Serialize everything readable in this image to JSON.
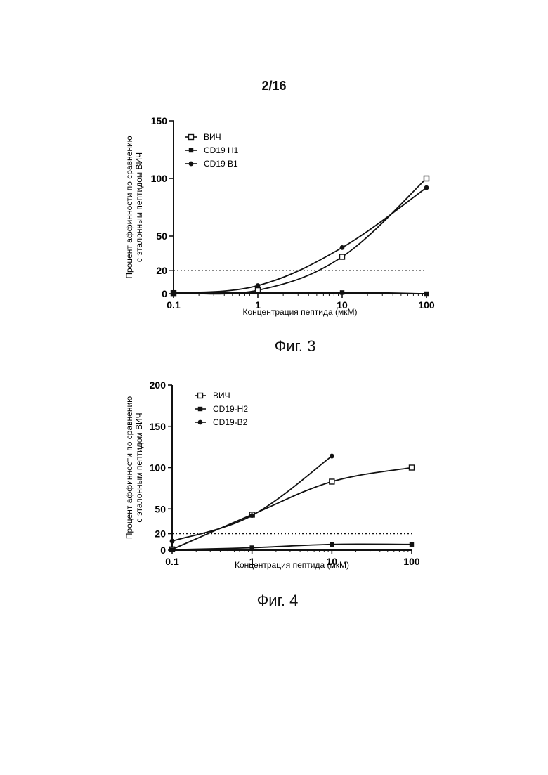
{
  "page": {
    "number": "2/16"
  },
  "figures": [
    {
      "caption": "Фиг. 3"
    },
    {
      "caption": "Фиг. 4"
    }
  ],
  "chart_data": [
    {
      "type": "line",
      "xscale": "log",
      "xlim": [
        0.1,
        100
      ],
      "ylim": [
        0,
        150
      ],
      "xticks": [
        "0.1",
        "1",
        "10",
        "100"
      ],
      "yticks": [
        "0",
        "20",
        "50",
        "100",
        "150"
      ],
      "xlabel": "Концентрация пептида (мкМ)",
      "ylabel": [
        "Процент аффинности по сравнению",
        "с эталонным пептидом ВИЧ"
      ],
      "threshold": 20,
      "legend": "top-left",
      "series": [
        {
          "name": "ВИЧ",
          "marker": "open-square",
          "x": [
            0.1,
            1,
            10,
            100
          ],
          "y": [
            0.5,
            3,
            32,
            100
          ]
        },
        {
          "name": "CD19 H1",
          "marker": "filled-square",
          "x": [
            0.1,
            10,
            100
          ],
          "y": [
            0.5,
            1,
            0
          ]
        },
        {
          "name": "CD19 B1",
          "marker": "filled-circle",
          "x": [
            0.1,
            1,
            10,
            100
          ],
          "y": [
            0.5,
            7,
            40,
            92
          ]
        }
      ]
    },
    {
      "type": "line",
      "xscale": "log",
      "xlim": [
        0.1,
        100
      ],
      "ylim": [
        0,
        200
      ],
      "xticks": [
        "0.1",
        "1",
        "10",
        "100"
      ],
      "yticks": [
        "0",
        "20",
        "50",
        "100",
        "150",
        "200"
      ],
      "xlabel": "Концентрация пептида (мкМ)",
      "ylabel": [
        "Процент аффинности по сравнению",
        "с эталонным пептидом ВИЧ"
      ],
      "threshold": 20,
      "legend": "top-left",
      "series": [
        {
          "name": "ВИЧ",
          "marker": "open-square",
          "x": [
            0.1,
            1,
            10,
            100
          ],
          "y": [
            1,
            43,
            83,
            100
          ]
        },
        {
          "name": "CD19-H2",
          "marker": "filled-square",
          "x": [
            0.1,
            1,
            10,
            100
          ],
          "y": [
            0.5,
            3,
            7,
            7
          ]
        },
        {
          "name": "CD19-B2",
          "marker": "filled-circle",
          "x": [
            0.1,
            1,
            10
          ],
          "y": [
            11,
            42,
            114
          ]
        }
      ]
    }
  ]
}
